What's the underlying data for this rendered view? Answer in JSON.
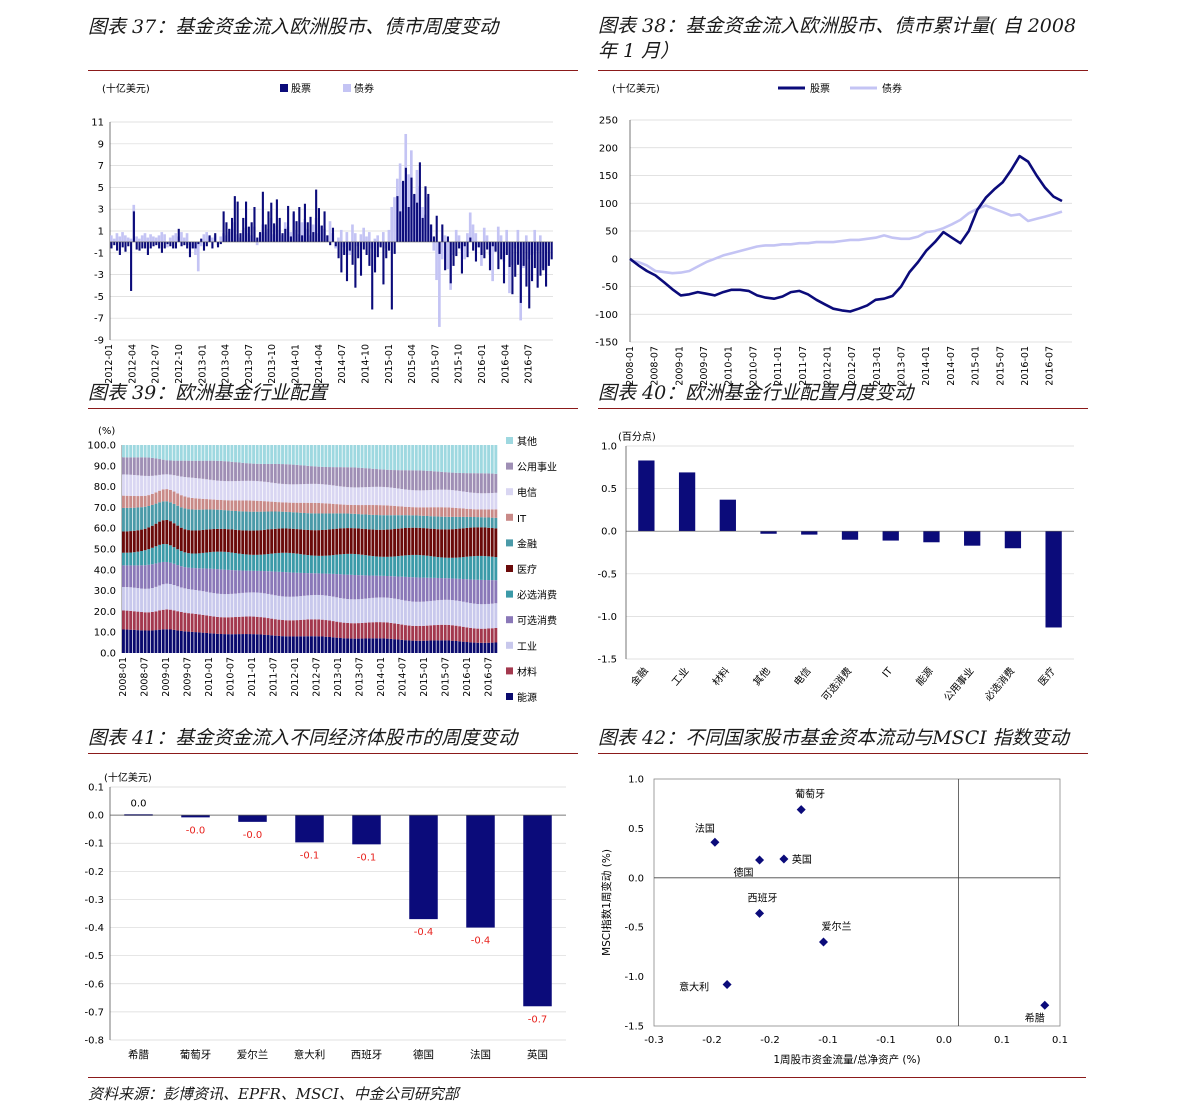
{
  "source_note": "资料来源：彭博资讯、EPFR、MSCI、中金公司研究部",
  "colors": {
    "navy": "#0b0b7a",
    "lavender": "#c4c4f4",
    "rule": "#8b1a1a"
  },
  "chart_data": [
    {
      "id": "c37",
      "title": "图表 37：基金资金流入欧洲股市、债市周度变动",
      "type": "bar",
      "unit": "(十亿美元)",
      "legend": [
        "股票",
        "债券"
      ],
      "ylim": [
        -9,
        11
      ],
      "yticks": [
        11,
        9,
        7,
        5,
        3,
        1,
        -1,
        -3,
        -5,
        -7,
        -9
      ],
      "xticks": [
        "2012-01",
        "2012-04",
        "2012-07",
        "2012-10",
        "2013-01",
        "2013-04",
        "2013-07",
        "2013-10",
        "2014-01",
        "2014-04",
        "2014-07",
        "2014-10",
        "2015-01",
        "2015-04",
        "2015-07",
        "2015-10",
        "2016-01",
        "2016-04",
        "2016-07"
      ],
      "series": [
        {
          "name": "股票",
          "values": [
            -0.6,
            -0.3,
            -0.8,
            -1.2,
            -0.5,
            -0.9,
            -0.4,
            -4.5,
            2.8,
            -0.7,
            -0.8,
            -0.6,
            -0.6,
            -1.2,
            -0.6,
            -0.4,
            -0.3,
            -0.6,
            -1,
            -0.6,
            -0.2,
            -0.4,
            -0.6,
            -0.6,
            1.2,
            -0.4,
            -0.3,
            -0.6,
            -1.4,
            -0.6,
            -0.6,
            -0.2,
            0.3,
            -0.8,
            -0.4,
            0.6,
            -0.6,
            0.8,
            -0.5,
            -0.2,
            2.8,
            1.8,
            1.2,
            2.2,
            4.2,
            3.7,
            0.8,
            2.2,
            3.7,
            1.4,
            1.8,
            3.2,
            0.4,
            0.9,
            4.6,
            1.6,
            2.8,
            3.6,
            1.7,
            3.9,
            2.2,
            0.8,
            1.2,
            3.3,
            0.5,
            2.8,
            1.9,
            3.2,
            0.6,
            3.5,
            1.8,
            2.3,
            0.9,
            4.8,
            3.1,
            1.5,
            2.8,
            0.6,
            -0.3,
            1.3,
            -0.4,
            -1.5,
            -2.8,
            -1.2,
            -3.6,
            -0.8,
            -2.1,
            -4.2,
            -1.5,
            -3.1,
            -0.7,
            -1.2,
            -2.2,
            -6.2,
            -2.8,
            -1.4,
            -0.5,
            -3.9,
            -1.5,
            -0.8,
            -6.2,
            -1.1,
            4.2,
            2.8,
            5.6,
            6.8,
            3.2,
            5.9,
            4.4,
            3.6,
            7.3,
            2.2,
            5.1,
            4.4,
            1.6,
            0.5,
            2.4,
            -1.1,
            1.6,
            -2.6,
            0.5,
            -3.8,
            -2.2,
            -1.3,
            -0.6,
            -2.9,
            -0.4,
            -1.4,
            0.4,
            -0.8,
            -1.8,
            -0.5,
            -1.2,
            -1.5,
            -0.7,
            -2.6,
            -0.4,
            -0.9,
            -2.5,
            -1.6,
            -3.8,
            -1.2,
            -2.3,
            -4.8,
            -3.2,
            -2.1,
            -5.6,
            -2.2,
            -4.1,
            -6.1,
            -3.6,
            -2.4,
            -4.2,
            -3.1,
            -2.6,
            -4.1,
            -2.2,
            -1.6
          ]
        },
        {
          "name": "债券",
          "values": [
            0.6,
            0.3,
            0.8,
            0.5,
            0.9,
            0.6,
            0.4,
            0.3,
            3.4,
            0.5,
            0.3,
            0.6,
            0.8,
            0.4,
            0.7,
            0.5,
            0.4,
            0.6,
            0.9,
            0.7,
            -0.5,
            0.4,
            0.6,
            0.8,
            0.5,
            0.9,
            0.4,
            0.8,
            -0.3,
            -0.6,
            -1.2,
            -2.7,
            -0.4,
            0.7,
            0.9,
            0.5,
            0.4,
            0.6,
            -0.3,
            0.5,
            0.8,
            0.6,
            0.9,
            1.2,
            1.8,
            0.7,
            0.4,
            1.1,
            1.3,
            0.8,
            0.6,
            1.4,
            -0.3,
            0.8,
            1.6,
            0.9,
            1.2,
            2.2,
            0.7,
            1.5,
            1.1,
            0.6,
            1.8,
            1.4,
            0.9,
            2.6,
            1.1,
            0.7,
            1.8,
            2.1,
            1.2,
            0.6,
            1.6,
            2.2,
            0.8,
            1.5,
            1.2,
            0.6,
            1.9,
            0.8,
            -0.6,
            0.4,
            1.1,
            -0.5,
            0.9,
            -1.2,
            1.6,
            0.8,
            -0.4,
            0.7,
            1.3,
            0.5,
            0.9,
            -0.6,
            0.3,
            0.6,
            -0.4,
            0.9,
            -0.6,
            1.1,
            3.2,
            4.1,
            5.8,
            7.2,
            5.5,
            9.9,
            6.2,
            8.4,
            4.3,
            6.6,
            5.1,
            3.2,
            2.5,
            4.1,
            1.6,
            -0.8,
            -3.5,
            -7.8,
            -1.6,
            0.6,
            -2.5,
            -4.4,
            -1.2,
            1.1,
            0.6,
            -0.8,
            -1.6,
            0.8,
            2.7,
            1.6,
            0.8,
            -0.5,
            -2.2,
            1.3,
            0.6,
            -1.2,
            -3.6,
            -0.8,
            1.4,
            0.6,
            -1.8,
            1.1,
            -4.7,
            -2.1,
            -0.6,
            1.1,
            -7.2,
            -2.4,
            0.6,
            -1.6,
            -1.2,
            1.1,
            -0.8,
            0.6,
            -2.4,
            -2.6
          ]
        }
      ]
    },
    {
      "id": "c38",
      "title": "图表 38：基金资金流入欧洲股市、债市累计量( 自 2008 年 1 月）",
      "type": "line",
      "unit": "(十亿美元)",
      "legend": [
        "股票",
        "债券"
      ],
      "ylim": [
        -150,
        250
      ],
      "yticks": [
        250,
        200,
        150,
        100,
        50,
        0,
        -50,
        -100,
        -150
      ],
      "xticks": [
        "2008-01",
        "2008-07",
        "2009-01",
        "2009-07",
        "2010-01",
        "2010-07",
        "2011-01",
        "2011-07",
        "2012-01",
        "2012-07",
        "2013-01",
        "2013-07",
        "2014-01",
        "2014-07",
        "2015-01",
        "2015-07",
        "2016-01",
        "2016-07"
      ],
      "x_start": "2008-01",
      "x_end": "2016-10",
      "series": [
        {
          "name": "股票",
          "points": [
            [
              0,
              0
            ],
            [
              1,
              -12
            ],
            [
              2,
              -22
            ],
            [
              3,
              -30
            ],
            [
              4,
              -42
            ],
            [
              5,
              -55
            ],
            [
              6,
              -66
            ],
            [
              7,
              -64
            ],
            [
              8,
              -60
            ],
            [
              9,
              -63
            ],
            [
              10,
              -66
            ],
            [
              11,
              -60
            ],
            [
              12,
              -56
            ],
            [
              13,
              -56
            ],
            [
              14,
              -58
            ],
            [
              15,
              -66
            ],
            [
              16,
              -70
            ],
            [
              17,
              -72
            ],
            [
              18,
              -68
            ],
            [
              19,
              -60
            ],
            [
              20,
              -58
            ],
            [
              21,
              -64
            ],
            [
              22,
              -74
            ],
            [
              23,
              -82
            ],
            [
              24,
              -90
            ],
            [
              25,
              -93
            ],
            [
              26,
              -95
            ],
            [
              27,
              -90
            ],
            [
              28,
              -84
            ],
            [
              29,
              -74
            ],
            [
              30,
              -72
            ],
            [
              31,
              -67
            ],
            [
              32,
              -50
            ],
            [
              33,
              -24
            ],
            [
              34,
              -6
            ],
            [
              35,
              15
            ],
            [
              36,
              30
            ],
            [
              37,
              48
            ],
            [
              38,
              38
            ],
            [
              39,
              28
            ],
            [
              40,
              50
            ],
            [
              41,
              88
            ],
            [
              42,
              110
            ],
            [
              43,
              125
            ],
            [
              44,
              138
            ],
            [
              45,
              160
            ],
            [
              46,
              185
            ],
            [
              47,
              175
            ],
            [
              48,
              150
            ],
            [
              49,
              128
            ],
            [
              50,
              112
            ],
            [
              51,
              104
            ]
          ]
        },
        {
          "name": "债券",
          "points": [
            [
              0,
              -3
            ],
            [
              1,
              -6
            ],
            [
              2,
              -12
            ],
            [
              3,
              -22
            ],
            [
              4,
              -24
            ],
            [
              5,
              -26
            ],
            [
              6,
              -25
            ],
            [
              7,
              -22
            ],
            [
              8,
              -14
            ],
            [
              9,
              -6
            ],
            [
              10,
              0
            ],
            [
              11,
              6
            ],
            [
              12,
              10
            ],
            [
              13,
              14
            ],
            [
              14,
              18
            ],
            [
              15,
              22
            ],
            [
              16,
              24
            ],
            [
              17,
              24
            ],
            [
              18,
              26
            ],
            [
              19,
              26
            ],
            [
              20,
              28
            ],
            [
              21,
              28
            ],
            [
              22,
              30
            ],
            [
              23,
              30
            ],
            [
              24,
              30
            ],
            [
              25,
              32
            ],
            [
              26,
              34
            ],
            [
              27,
              34
            ],
            [
              28,
              36
            ],
            [
              29,
              38
            ],
            [
              30,
              42
            ],
            [
              31,
              38
            ],
            [
              32,
              36
            ],
            [
              33,
              36
            ],
            [
              34,
              40
            ],
            [
              35,
              48
            ],
            [
              36,
              50
            ],
            [
              37,
              55
            ],
            [
              38,
              62
            ],
            [
              39,
              70
            ],
            [
              40,
              82
            ],
            [
              41,
              90
            ],
            [
              42,
              96
            ],
            [
              43,
              90
            ],
            [
              44,
              84
            ],
            [
              45,
              78
            ],
            [
              46,
              80
            ],
            [
              47,
              68
            ],
            [
              48,
              72
            ],
            [
              49,
              76
            ],
            [
              50,
              80
            ],
            [
              51,
              85
            ]
          ]
        }
      ]
    },
    {
      "id": "c39",
      "title": "图表 39：欧洲基金行业配置",
      "type": "area",
      "unit": "(%)",
      "ylim": [
        0,
        100
      ],
      "yticks": [
        "100.0",
        "90.0",
        "80.0",
        "70.0",
        "60.0",
        "50.0",
        "40.0",
        "30.0",
        "20.0",
        "10.0",
        "0.0"
      ],
      "xticks": [
        "2008-01",
        "2008-07",
        "2009-01",
        "2009-07",
        "2010-01",
        "2010-07",
        "2011-01",
        "2011-07",
        "2012-01",
        "2012-07",
        "2013-01",
        "2013-07",
        "2014-01",
        "2014-07",
        "2015-01",
        "2015-07",
        "2016-01",
        "2016-07"
      ],
      "categories_legend": [
        "其他",
        "公用事业",
        "电信",
        "IT",
        "金融",
        "医疗",
        "必选消费",
        "可选消费",
        "工业",
        "材料",
        "能源"
      ],
      "series_colors": [
        "#9ed8e0",
        "#9f8fb5",
        "#d9d6f2",
        "#c98a88",
        "#4a9aa8",
        "#6b0a0a",
        "#3b9aa8",
        "#8a78b8",
        "#c8c8ec",
        "#a3384e",
        "#0a0a6e"
      ],
      "stack_start": {
        "能源": 10,
        "材料": 8,
        "工业": 10,
        "可选消费": 10,
        "必选消费": 6,
        "医疗": 9,
        "金融": 10,
        "IT": 5,
        "电信": 9,
        "公用事业": 8,
        "其他": 5
      },
      "stack_end": {
        "能源": 5,
        "材料": 7,
        "工业": 12,
        "可选消费": 11,
        "必选消费": 11,
        "医疗": 14,
        "金融": 5,
        "IT": 4,
        "电信": 8,
        "公用事业": 9,
        "其他": 14
      }
    },
    {
      "id": "c40",
      "title": "图表 40：欧洲基金行业配置月度变动",
      "type": "bar",
      "unit": "(百分点)",
      "ylim": [
        -1.5,
        1.0
      ],
      "yticks": [
        "1.0",
        "0.5",
        "0.0",
        "-0.5",
        "-1.0",
        "-1.5"
      ],
      "categories": [
        "金融",
        "工业",
        "材料",
        "其他",
        "电信",
        "可选消费",
        "IT",
        "能源",
        "公用事业",
        "必选消费",
        "医疗"
      ],
      "values": [
        0.83,
        0.69,
        0.37,
        -0.03,
        -0.04,
        -0.1,
        -0.11,
        -0.13,
        -0.17,
        -0.2,
        -1.13
      ]
    },
    {
      "id": "c41",
      "title": "图表 41：基金资金流入不同经济体股市的周度变动",
      "type": "bar",
      "unit": "(十亿美元)",
      "ylim": [
        -0.8,
        0.1
      ],
      "yticks": [
        "0.1",
        "0.0",
        "-0.1",
        "-0.2",
        "-0.3",
        "-0.4",
        "-0.5",
        "-0.6",
        "-0.7",
        "-0.8"
      ],
      "categories": [
        "希腊",
        "葡萄牙",
        "爱尔兰",
        "意大利",
        "西班牙",
        "德国",
        "法国",
        "英国"
      ],
      "values": [
        0.003,
        -0.008,
        -0.024,
        -0.097,
        -0.104,
        -0.37,
        -0.4,
        -0.68
      ],
      "data_labels": [
        "0.0",
        "-0.0",
        "-0.0",
        "-0.1",
        "-0.1",
        "-0.4",
        "-0.4",
        "-0.7"
      ]
    },
    {
      "id": "c42",
      "title": "图表 42：不同国家股市基金资本流动与MSCI 指数变动",
      "type": "scatter",
      "xlabel": "1周股市资金流量/总净资产 (%)",
      "ylabel": "MSCI指数1周变动 (%)",
      "xlim": [
        -0.3,
        0.1
      ],
      "ylim": [
        -1.5,
        1.0
      ],
      "xticks": [
        "-0.3",
        "-0.2",
        "-0.2",
        "-0.1",
        "-0.1",
        "0.0",
        "0.1",
        "0.1"
      ],
      "yticks": [
        "1.0",
        "0.5",
        "0.0",
        "-0.5",
        "-1.0",
        "-1.5"
      ],
      "points": [
        {
          "label": "葡萄牙",
          "x": -0.155,
          "y": 0.69
        },
        {
          "label": "法国",
          "x": -0.24,
          "y": 0.36
        },
        {
          "label": "德国",
          "x": -0.196,
          "y": 0.18
        },
        {
          "label": "英国",
          "x": -0.172,
          "y": 0.19
        },
        {
          "label": "西班牙",
          "x": -0.196,
          "y": -0.36
        },
        {
          "label": "爱尔兰",
          "x": -0.133,
          "y": -0.65
        },
        {
          "label": "意大利",
          "x": -0.228,
          "y": -1.08
        },
        {
          "label": "希腊",
          "x": 0.085,
          "y": -1.29
        }
      ]
    }
  ]
}
